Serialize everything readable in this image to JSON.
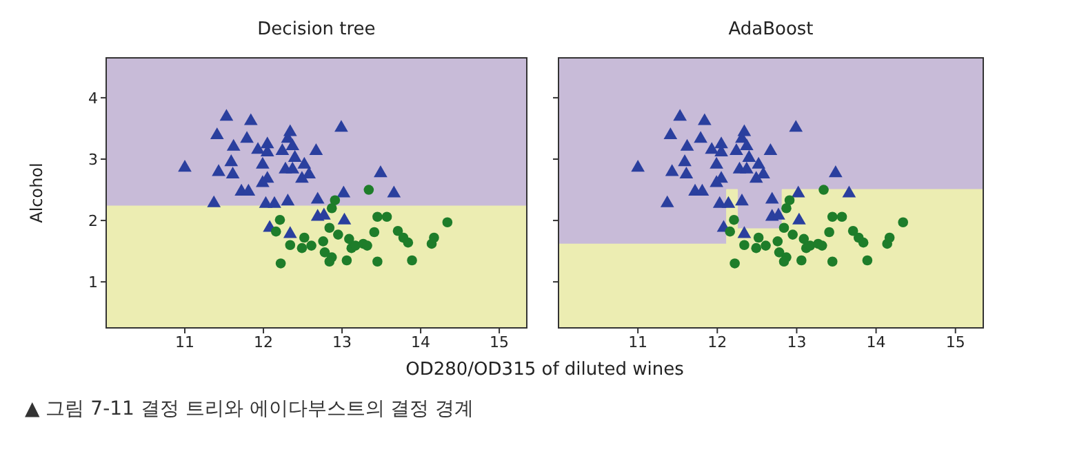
{
  "chart_data": [
    {
      "type": "scatter",
      "title": "Decision tree",
      "xlabel": "OD280/OD315 of diluted wines",
      "ylabel": "Alcohol",
      "xlim": [
        10.0,
        15.35
      ],
      "ylim": [
        0.25,
        4.65
      ],
      "xticks": [
        11,
        12,
        13,
        14,
        15
      ],
      "yticks": [
        1,
        2,
        3,
        4
      ],
      "bands": [
        {
          "axis": "y",
          "from": 0.25,
          "to": 4.65,
          "color": "#c8bbd8"
        }
      ],
      "series": [
        {
          "type": "area",
          "color": "#ecedb2",
          "x": [
            10.0,
            15.35
          ],
          "values": [
            2.23,
            2.23
          ]
        },
        {
          "marker": "triangle",
          "color": "#2a3f9e",
          "x": [
            11.0,
            11.53,
            11.84,
            11.41,
            11.62,
            11.59,
            11.43,
            11.61,
            11.79,
            11.37,
            11.72,
            11.81,
            11.93,
            12.05,
            12.05,
            11.99,
            12.05,
            11.99,
            12.03,
            12.14,
            12.24,
            12.31,
            12.34,
            12.37,
            12.4,
            12.28,
            12.37,
            12.52,
            12.49,
            12.58,
            12.31,
            12.67,
            12.69,
            12.99,
            13.02,
            13.03,
            12.69,
            12.77,
            12.34,
            13.49,
            13.66,
            12.08
          ],
          "values": [
            2.86,
            3.69,
            3.62,
            3.39,
            3.2,
            2.95,
            2.79,
            2.75,
            3.33,
            2.28,
            2.47,
            2.47,
            3.15,
            3.24,
            3.11,
            2.91,
            2.68,
            2.61,
            2.27,
            2.27,
            3.13,
            3.33,
            3.44,
            3.21,
            3.02,
            2.83,
            2.83,
            2.91,
            2.68,
            2.75,
            2.31,
            3.13,
            2.34,
            3.51,
            2.44,
            2.0,
            2.06,
            2.08,
            1.78,
            2.77,
            2.44,
            1.88
          ]
        },
        {
          "marker": "circle",
          "color": "#1e7d2a",
          "x": [
            13.34,
            12.91,
            12.87,
            12.21,
            12.16,
            12.84,
            12.95,
            12.52,
            12.34,
            12.49,
            12.61,
            12.76,
            12.78,
            12.87,
            12.84,
            12.22,
            13.06,
            13.12,
            13.09,
            13.17,
            13.27,
            13.32,
            13.41,
            13.45,
            13.57,
            13.45,
            13.71,
            13.78,
            13.84,
            13.89,
            14.14,
            14.17,
            14.34
          ],
          "values": [
            2.5,
            2.33,
            2.2,
            2.01,
            1.82,
            1.88,
            1.77,
            1.72,
            1.6,
            1.55,
            1.59,
            1.66,
            1.48,
            1.4,
            1.33,
            1.3,
            1.35,
            1.55,
            1.7,
            1.59,
            1.62,
            1.59,
            1.81,
            2.06,
            2.06,
            1.33,
            1.83,
            1.72,
            1.64,
            1.35,
            1.62,
            1.72,
            1.97
          ]
        }
      ]
    },
    {
      "type": "scatter",
      "title": "AdaBoost",
      "xlim": [
        10.0,
        15.35
      ],
      "ylim": [
        0.25,
        4.65
      ],
      "xticks": [
        11,
        12,
        13,
        14,
        15
      ],
      "yticks": [
        1,
        2,
        3,
        4
      ],
      "tick_labels": "x",
      "annotations": [
        "▲ 그림 7-11 결정 트리와 에이다부스트의 결정 경계"
      ],
      "bands": [
        {
          "axis": "y",
          "from": 0.25,
          "to": 4.65,
          "color": "#c8bbd8"
        }
      ],
      "series": [
        {
          "type": "area",
          "color": "#ecedb2",
          "x": [
            10.0,
            12.12,
            12.12,
            12.25,
            12.25,
            12.82,
            12.82,
            15.35
          ],
          "values": [
            1.61,
            1.61,
            2.5,
            2.5,
            1.86,
            1.86,
            2.5,
            2.5
          ]
        },
        {
          "marker": "triangle",
          "color": "#2a3f9e",
          "x": [
            11.0,
            11.53,
            11.84,
            11.41,
            11.62,
            11.59,
            11.43,
            11.61,
            11.79,
            11.37,
            11.72,
            11.81,
            11.93,
            12.05,
            12.05,
            11.99,
            12.05,
            11.99,
            12.03,
            12.14,
            12.24,
            12.31,
            12.34,
            12.37,
            12.4,
            12.28,
            12.37,
            12.52,
            12.49,
            12.58,
            12.31,
            12.67,
            12.69,
            12.99,
            13.02,
            13.03,
            12.69,
            12.77,
            12.34,
            13.49,
            13.66,
            12.08
          ],
          "values": [
            2.86,
            3.69,
            3.62,
            3.39,
            3.2,
            2.95,
            2.79,
            2.75,
            3.33,
            2.28,
            2.47,
            2.47,
            3.15,
            3.24,
            3.11,
            2.91,
            2.68,
            2.61,
            2.27,
            2.27,
            3.13,
            3.33,
            3.44,
            3.21,
            3.02,
            2.83,
            2.83,
            2.91,
            2.68,
            2.75,
            2.31,
            3.13,
            2.34,
            3.51,
            2.44,
            2.0,
            2.06,
            2.08,
            1.78,
            2.77,
            2.44,
            1.88
          ]
        },
        {
          "marker": "circle",
          "color": "#1e7d2a",
          "x": [
            13.34,
            12.91,
            12.87,
            12.21,
            12.16,
            12.84,
            12.95,
            12.52,
            12.34,
            12.49,
            12.61,
            12.76,
            12.78,
            12.87,
            12.84,
            12.22,
            13.06,
            13.12,
            13.09,
            13.17,
            13.27,
            13.32,
            13.41,
            13.45,
            13.57,
            13.45,
            13.71,
            13.78,
            13.84,
            13.89,
            14.14,
            14.17,
            14.34
          ],
          "values": [
            2.5,
            2.33,
            2.2,
            2.01,
            1.82,
            1.88,
            1.77,
            1.72,
            1.6,
            1.55,
            1.59,
            1.66,
            1.48,
            1.4,
            1.33,
            1.3,
            1.35,
            1.55,
            1.7,
            1.59,
            1.62,
            1.59,
            1.81,
            2.06,
            2.06,
            1.33,
            1.83,
            1.72,
            1.64,
            1.35,
            1.62,
            1.72,
            1.97
          ]
        }
      ]
    }
  ]
}
